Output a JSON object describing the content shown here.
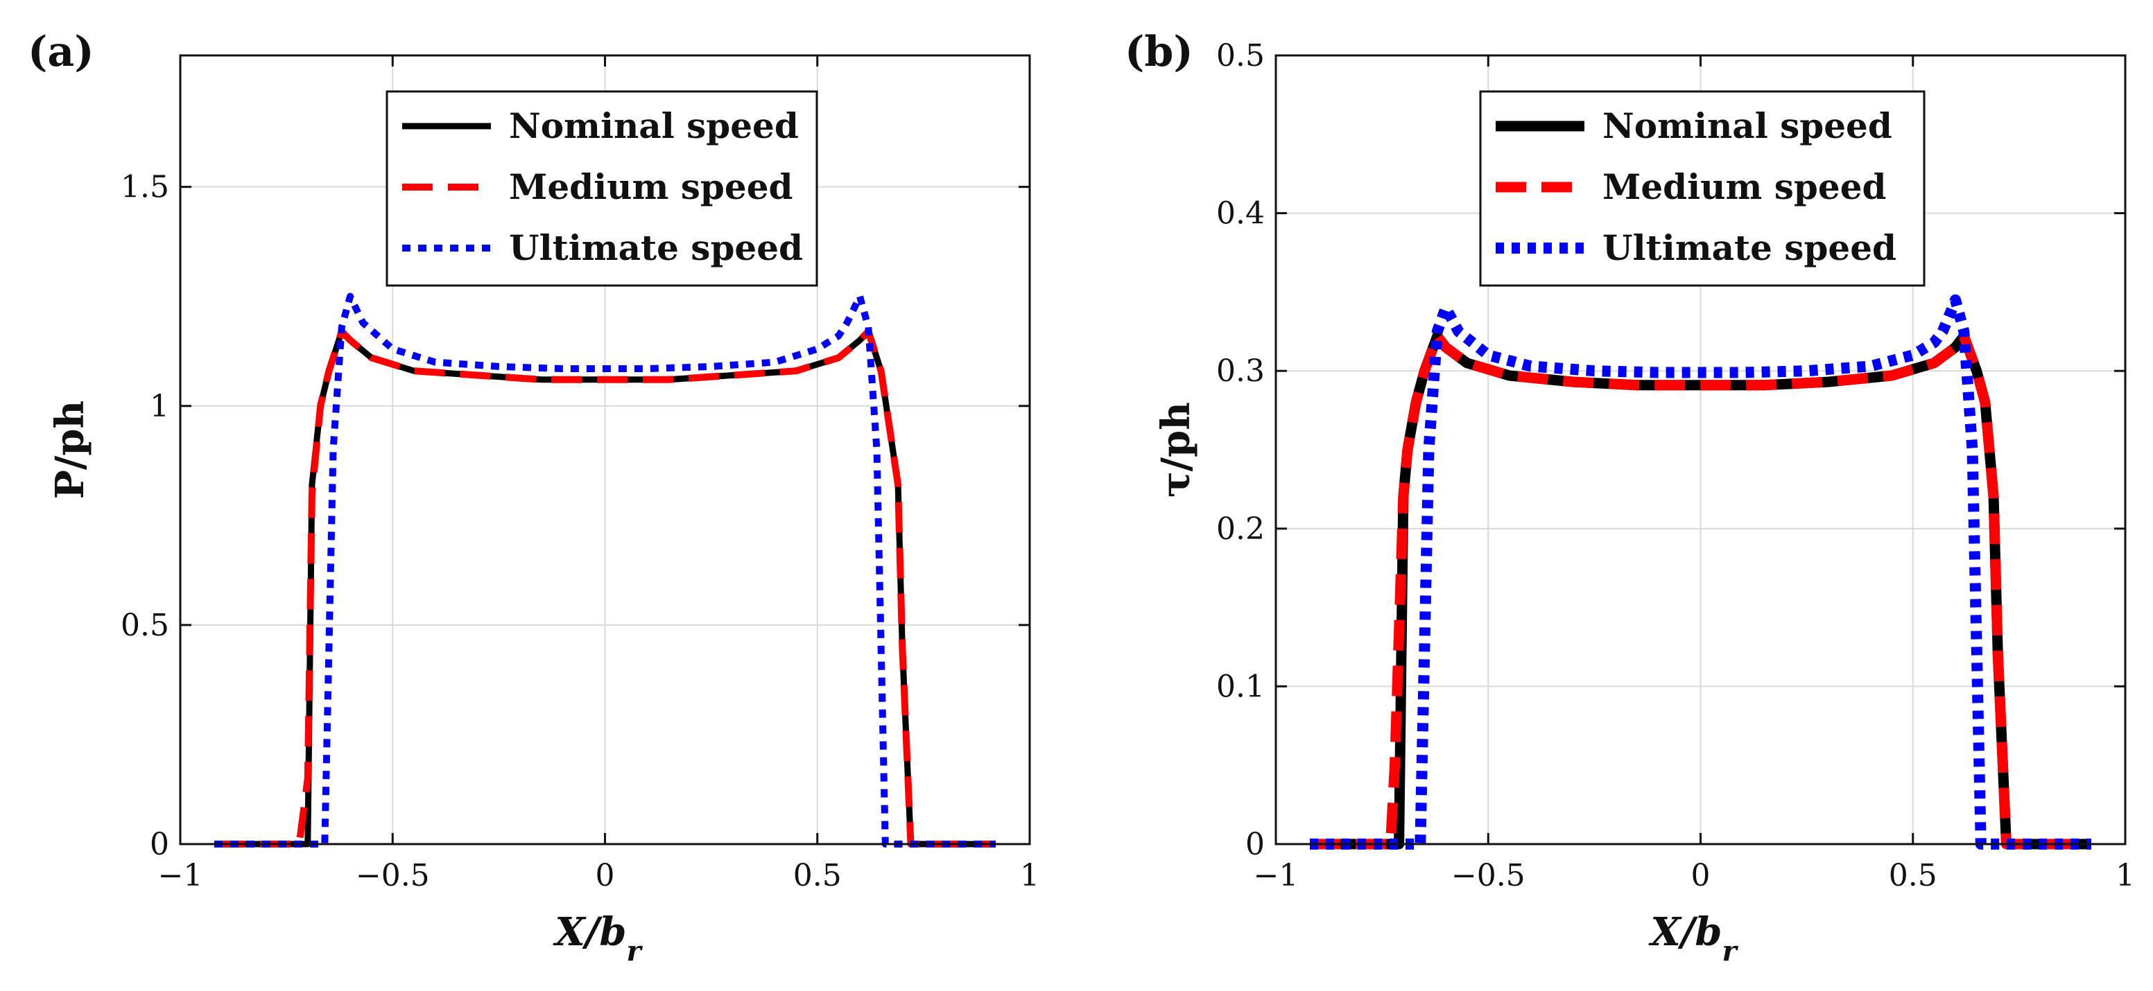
{
  "series_styles": [
    {
      "color": "#000000",
      "dash": "solid"
    },
    {
      "color": "#ff0000",
      "dash": "dashed"
    },
    {
      "color": "#0000ff",
      "dash": "dotted"
    }
  ],
  "chart_data": [
    {
      "panel_label": "(a)",
      "type": "line",
      "title": "",
      "xlabel_main": "X/b",
      "xlabel_sub": "r",
      "ylabel": "P/ph",
      "xlim": [
        -1,
        1
      ],
      "ylim": [
        0,
        1.8
      ],
      "xticks": [
        -1,
        -0.5,
        0,
        0.5,
        1
      ],
      "xtick_labels": [
        "−1",
        "−0.5",
        "0",
        "0.5",
        "1"
      ],
      "yticks": [
        0,
        0.5,
        1,
        1.5
      ],
      "ytick_labels": [
        "0",
        "0.5",
        "1",
        "1.5"
      ],
      "grid": true,
      "legend_position": "top-center",
      "series": [
        {
          "name": "Nominal speed",
          "x": [
            -0.92,
            -0.7,
            -0.69,
            -0.67,
            -0.65,
            -0.62,
            -0.6,
            -0.55,
            -0.45,
            -0.3,
            -0.15,
            0,
            0.15,
            0.3,
            0.45,
            0.55,
            0.6,
            0.62,
            0.65,
            0.67,
            0.69,
            0.7,
            0.72,
            0.92
          ],
          "y": [
            0,
            0,
            0.82,
            1.0,
            1.08,
            1.17,
            1.15,
            1.11,
            1.08,
            1.07,
            1.06,
            1.06,
            1.06,
            1.07,
            1.08,
            1.11,
            1.15,
            1.17,
            1.08,
            0.95,
            0.82,
            0.45,
            0,
            0
          ]
        },
        {
          "name": "Medium speed",
          "x": [
            -0.92,
            -0.72,
            -0.7,
            -0.69,
            -0.67,
            -0.65,
            -0.62,
            -0.6,
            -0.55,
            -0.45,
            -0.3,
            -0.15,
            0,
            0.15,
            0.3,
            0.45,
            0.55,
            0.6,
            0.62,
            0.65,
            0.67,
            0.69,
            0.7,
            0.72,
            0.92
          ],
          "y": [
            0,
            0,
            0.15,
            0.8,
            1.0,
            1.08,
            1.17,
            1.15,
            1.11,
            1.08,
            1.07,
            1.06,
            1.06,
            1.06,
            1.07,
            1.08,
            1.11,
            1.15,
            1.17,
            1.08,
            0.95,
            0.82,
            0.45,
            0,
            0
          ]
        },
        {
          "name": "Ultimate speed",
          "x": [
            -0.92,
            -0.66,
            -0.64,
            -0.62,
            -0.6,
            -0.57,
            -0.5,
            -0.4,
            -0.25,
            -0.1,
            0,
            0.1,
            0.25,
            0.4,
            0.5,
            0.55,
            0.57,
            0.59,
            0.6,
            0.62,
            0.64,
            0.66,
            0.92
          ],
          "y": [
            0,
            0,
            0.9,
            1.18,
            1.25,
            1.19,
            1.13,
            1.1,
            1.09,
            1.085,
            1.085,
            1.085,
            1.09,
            1.1,
            1.13,
            1.16,
            1.19,
            1.23,
            1.25,
            1.18,
            0.9,
            0,
            0
          ]
        }
      ]
    },
    {
      "panel_label": "(b)",
      "type": "line",
      "title": "",
      "xlabel_main": "X/b",
      "xlabel_sub": "r",
      "ylabel": "τ/ph",
      "xlim": [
        -1,
        1
      ],
      "ylim": [
        0,
        0.5
      ],
      "xticks": [
        -1,
        -0.5,
        0,
        0.5,
        1
      ],
      "xtick_labels": [
        "−1",
        "−0.5",
        "0",
        "0.5",
        "1"
      ],
      "yticks": [
        0,
        0.1,
        0.2,
        0.3,
        0.4,
        0.5
      ],
      "ytick_labels": [
        "0",
        "0.1",
        "0.2",
        "0.3",
        "0.4",
        "0.5"
      ],
      "grid": true,
      "legend_position": "top-center",
      "series": [
        {
          "name": "Nominal speed",
          "x": [
            -0.92,
            -0.71,
            -0.7,
            -0.69,
            -0.67,
            -0.65,
            -0.62,
            -0.6,
            -0.55,
            -0.45,
            -0.3,
            -0.15,
            0,
            0.15,
            0.3,
            0.45,
            0.55,
            0.6,
            0.62,
            0.65,
            0.67,
            0.69,
            0.7,
            0.72,
            0.92
          ],
          "y": [
            0,
            0,
            0.22,
            0.25,
            0.28,
            0.3,
            0.322,
            0.315,
            0.305,
            0.297,
            0.293,
            0.291,
            0.291,
            0.291,
            0.293,
            0.297,
            0.305,
            0.315,
            0.322,
            0.3,
            0.28,
            0.22,
            0.12,
            0,
            0
          ]
        },
        {
          "name": "Medium speed",
          "x": [
            -0.92,
            -0.73,
            -0.72,
            -0.7,
            -0.69,
            -0.67,
            -0.65,
            -0.62,
            -0.6,
            -0.55,
            -0.45,
            -0.3,
            -0.15,
            0,
            0.15,
            0.3,
            0.45,
            0.55,
            0.6,
            0.62,
            0.65,
            0.67,
            0.69,
            0.7,
            0.72,
            0.92
          ],
          "y": [
            0,
            0,
            0.05,
            0.22,
            0.25,
            0.28,
            0.3,
            0.322,
            0.315,
            0.305,
            0.297,
            0.293,
            0.291,
            0.291,
            0.291,
            0.293,
            0.297,
            0.305,
            0.315,
            0.322,
            0.3,
            0.28,
            0.22,
            0.12,
            0,
            0
          ]
        },
        {
          "name": "Ultimate speed",
          "x": [
            -0.92,
            -0.66,
            -0.64,
            -0.62,
            -0.6,
            -0.57,
            -0.5,
            -0.4,
            -0.25,
            -0.1,
            0,
            0.1,
            0.25,
            0.4,
            0.5,
            0.55,
            0.57,
            0.59,
            0.6,
            0.62,
            0.64,
            0.66,
            0.92
          ],
          "y": [
            0,
            0,
            0.25,
            0.325,
            0.34,
            0.325,
            0.31,
            0.303,
            0.3,
            0.299,
            0.299,
            0.299,
            0.3,
            0.303,
            0.31,
            0.318,
            0.325,
            0.338,
            0.345,
            0.325,
            0.25,
            0,
            0
          ]
        }
      ]
    }
  ]
}
